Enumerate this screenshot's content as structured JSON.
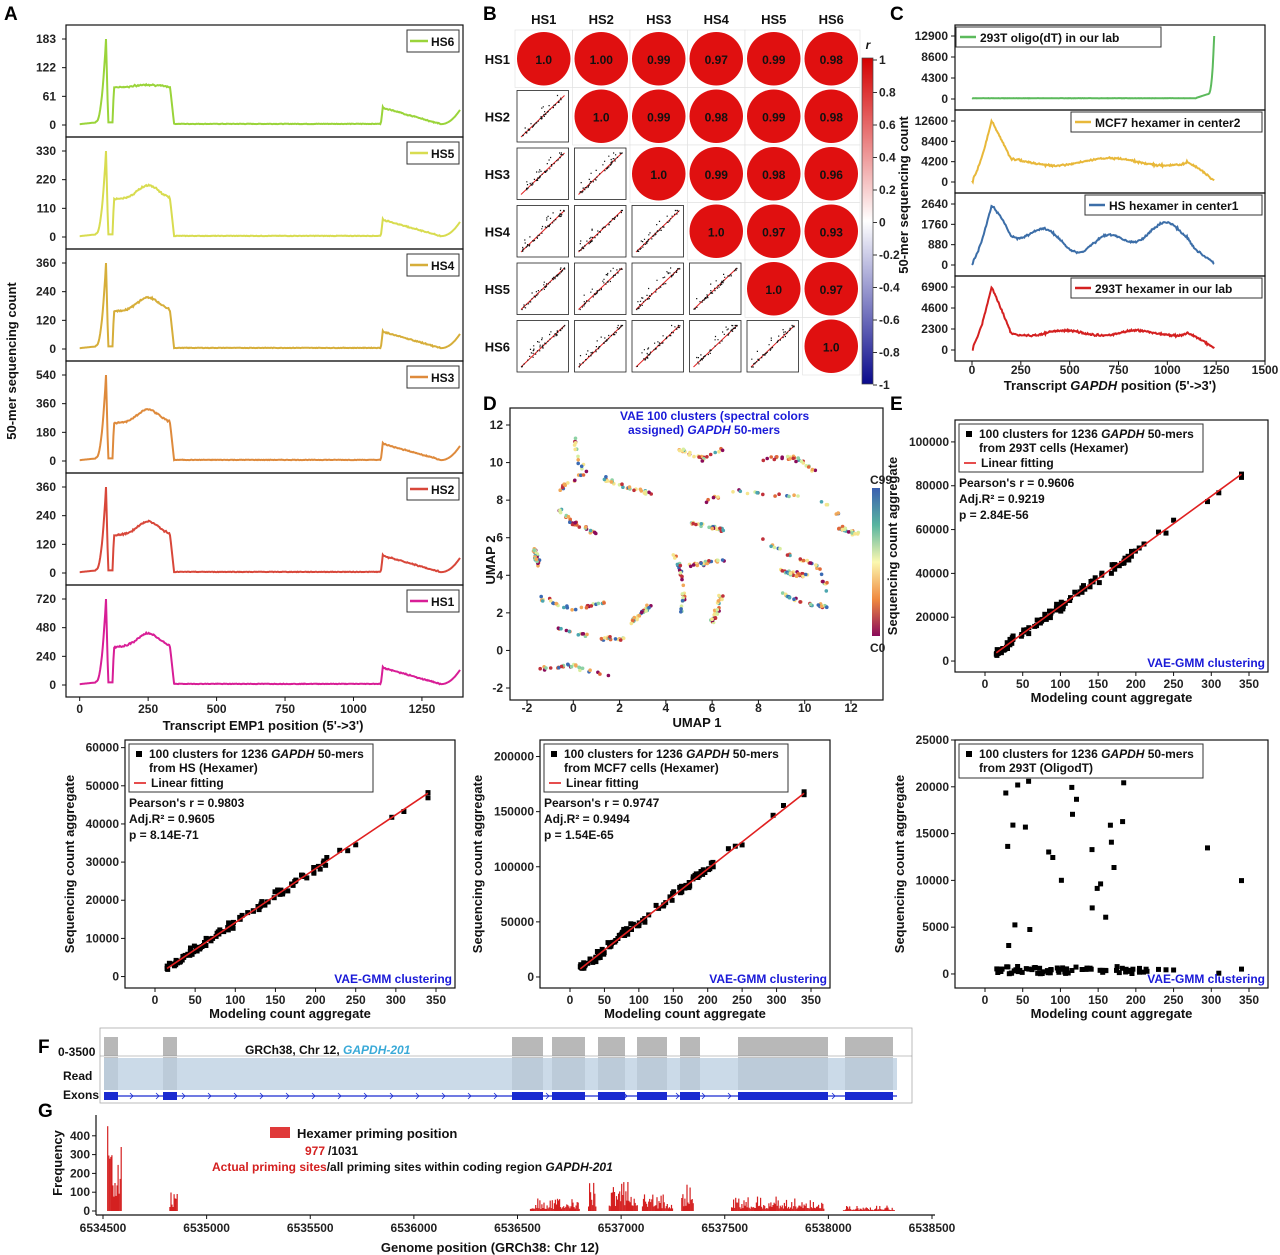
{
  "panel_labels": [
    "A",
    "B",
    "C",
    "D",
    "E",
    "F",
    "G"
  ],
  "colors": {
    "HS6": "#9ad43a",
    "HS5": "#d8dc50",
    "HS4": "#d6ae3a",
    "HS3": "#de8a3c",
    "HS2": "#d8473a",
    "HS1": "#d81e96",
    "green": "#5cba5c",
    "yellow": "#e8b83a",
    "blue": "#3c6ea8",
    "red": "#d42020",
    "corr": "#e01010"
  },
  "chart_data": [
    {
      "id": "A",
      "type": "line",
      "xlabel": "Transcript EMP1 position (5'->3')",
      "ylabel": "50-mer sequencing count",
      "x_ticks": [
        "0",
        "250",
        "500",
        "750",
        "1000",
        "1250"
      ],
      "xlim": [
        -50,
        1400
      ],
      "series": [
        {
          "name": "HS6",
          "ymax": 183,
          "y_ticks": [
            "0",
            "61",
            "122",
            "183"
          ]
        },
        {
          "name": "HS5",
          "ymax": 330,
          "y_ticks": [
            "0",
            "110",
            "220",
            "330"
          ]
        },
        {
          "name": "HS4",
          "ymax": 360,
          "y_ticks": [
            "0",
            "120",
            "240",
            "360"
          ]
        },
        {
          "name": "HS3",
          "ymax": 540,
          "y_ticks": [
            "0",
            "180",
            "360",
            "540"
          ]
        },
        {
          "name": "HS2",
          "ymax": 360,
          "y_ticks": [
            "0",
            "120",
            "240",
            "360"
          ]
        },
        {
          "name": "HS1",
          "ymax": 720,
          "y_ticks": [
            "0",
            "240",
            "480",
            "720"
          ]
        }
      ]
    },
    {
      "id": "B",
      "type": "heatmap",
      "labels": [
        "HS1",
        "HS2",
        "HS3",
        "HS4",
        "HS5",
        "HS6"
      ],
      "upper_values": [
        [
          "1.0",
          "1.00",
          "0.99",
          "0.97",
          "0.99",
          "0.98"
        ],
        [
          "",
          "1.0",
          "0.99",
          "0.98",
          "0.99",
          "0.98"
        ],
        [
          "",
          "",
          "1.0",
          "0.99",
          "0.98",
          "0.96"
        ],
        [
          "",
          "",
          "",
          "1.0",
          "0.97",
          "0.93"
        ],
        [
          "",
          "",
          "",
          "",
          "1.0",
          "0.97"
        ],
        [
          "",
          "",
          "",
          "",
          "",
          "1.0"
        ]
      ],
      "colorbar_label": "r",
      "colorbar_ticks": [
        "1",
        "0.8",
        "0.6",
        "0.4",
        "0.2",
        "0",
        "-0.2",
        "-0.4",
        "-0.6",
        "-0.8",
        "-1"
      ]
    },
    {
      "id": "C",
      "type": "line",
      "xlabel_prefix": "Transcript ",
      "xlabel_gene": "GAPDH",
      "xlabel_suffix": " position (5'->3')",
      "ylabel": "50-mer sequencing count",
      "x_ticks": [
        "0",
        "250",
        "500",
        "750",
        "1000",
        "1250",
        "1500"
      ],
      "series": [
        {
          "name": "293T oligo(dT) in our lab",
          "y_ticks": [
            "0",
            "4300",
            "8600",
            "12900"
          ]
        },
        {
          "name": "MCF7 hexamer in center2",
          "y_ticks": [
            "0",
            "4200",
            "8400",
            "12600"
          ]
        },
        {
          "name": "HS hexamer in center1",
          "y_ticks": [
            "0",
            "880",
            "1760",
            "2640"
          ]
        },
        {
          "name": "293T hexamer in our lab",
          "y_ticks": [
            "0",
            "2300",
            "4600",
            "6900"
          ]
        }
      ]
    },
    {
      "id": "D",
      "type": "scatter",
      "title_line1": "VAE 100 clusters (spectral colors",
      "title_line2": "assigned)",
      "title_gene": "GAPDH",
      "title_suffix": "50-mers",
      "xlabel": "UMAP 1",
      "ylabel": "UMAP 2",
      "x_ticks": [
        "-2",
        "0",
        "2",
        "4",
        "6",
        "8",
        "10",
        "12"
      ],
      "y_ticks": [
        "-2",
        "0",
        "2",
        "4",
        "6",
        "8",
        "10",
        "12"
      ],
      "colorbar_top": "C99",
      "colorbar_bottom": "C0"
    },
    {
      "id": "E1",
      "type": "scatter",
      "legend_line1": "100 clusters for 1236",
      "legend_gene": "GAPDH",
      "legend_suffix": "50-mers",
      "legend_line2": "from 293T cells (Hexamer)",
      "fit_label": "Linear fitting",
      "r": "Pearson's r = 0.9606",
      "adj": "Adj.R² = 0.9219",
      "p": "p = 2.84E-56",
      "method": "VAE-GMM clustering",
      "xlabel": "Modeling count aggregate",
      "ylabel": "Sequencing count aggregate",
      "x_ticks": [
        "0",
        "50",
        "100",
        "150",
        "200",
        "250",
        "300",
        "350"
      ],
      "y_ticks": [
        "0",
        "20000",
        "40000",
        "60000",
        "80000",
        "100000"
      ],
      "ylim": [
        -5000,
        110000
      ]
    },
    {
      "id": "E2",
      "type": "scatter",
      "legend_line1": "100 clusters for 1236",
      "legend_gene": "GAPDH",
      "legend_suffix": "50-mers",
      "legend_line2": "from HS (Hexamer)",
      "fit_label": "Linear fitting",
      "r": "Pearson's r = 0.9803",
      "adj": "Adj.R² = 0.9605",
      "p": "p = 8.14E-71",
      "method": "VAE-GMM clustering",
      "xlabel": "Modeling count aggregate",
      "ylabel": "Sequencing count aggregate",
      "x_ticks": [
        "0",
        "50",
        "100",
        "150",
        "200",
        "250",
        "300",
        "350"
      ],
      "y_ticks": [
        "0",
        "10000",
        "20000",
        "30000",
        "40000",
        "50000",
        "60000"
      ],
      "ylim": [
        -3000,
        62000
      ]
    },
    {
      "id": "E3",
      "type": "scatter",
      "legend_line1": "100 clusters for 1236",
      "legend_gene": "GAPDH",
      "legend_suffix": "50-mers",
      "legend_line2": "from MCF7 cells (Hexamer)",
      "fit_label": "Linear fitting",
      "r": "Pearson's r = 0.9747",
      "adj": "Adj.R² = 0.9494",
      "p": "p = 1.54E-65",
      "method": "VAE-GMM clustering",
      "xlabel": "Modeling count aggregate",
      "ylabel": "Sequencing count aggregate",
      "x_ticks": [
        "0",
        "50",
        "100",
        "150",
        "200",
        "250",
        "300",
        "350"
      ],
      "y_ticks": [
        "0",
        "50000",
        "100000",
        "150000",
        "200000"
      ],
      "ylim": [
        -10000,
        215000
      ]
    },
    {
      "id": "E4",
      "type": "scatter",
      "legend_line1": "100 clusters for 1236",
      "legend_gene": "GAPDH",
      "legend_suffix": "50-mers",
      "legend_line2": "from 293T (OligodT)",
      "method": "VAE-GMM clustering",
      "xlabel": "Modeling count aggregate",
      "ylabel": "Sequencing count aggregate",
      "x_ticks": [
        "0",
        "50",
        "100",
        "150",
        "200",
        "250",
        "300",
        "350"
      ],
      "y_ticks": [
        "0",
        "5000",
        "10000",
        "15000",
        "20000",
        "25000"
      ],
      "ylim": [
        -1500,
        25000
      ]
    },
    {
      "id": "F",
      "type": "table",
      "range_label": "0-3500",
      "track_title": "GRCh38, Chr 12,",
      "track_gene": "GAPDH-201",
      "read_label": "Read",
      "exons_label": "Exons"
    },
    {
      "id": "G",
      "type": "bar",
      "legend": "Hexamer priming position",
      "count_actual": "977",
      "count_total": "/1031",
      "caption_red": "Actual priming sites",
      "caption_black": "/all priming sites  within coding region",
      "caption_gene": "GAPDH-201",
      "ylabel": "Frequency",
      "xlabel": "Genome position (GRCh38: Chr 12)",
      "y_ticks": [
        "0",
        "100",
        "200",
        "300",
        "400"
      ],
      "x_ticks": [
        "6534500",
        "6535000",
        "6535500",
        "6536000",
        "6536500",
        "6537000",
        "6537500",
        "6538000",
        "6538500"
      ],
      "xlim": [
        6534500,
        6538500
      ],
      "ylim": [
        0,
        500
      ]
    }
  ]
}
